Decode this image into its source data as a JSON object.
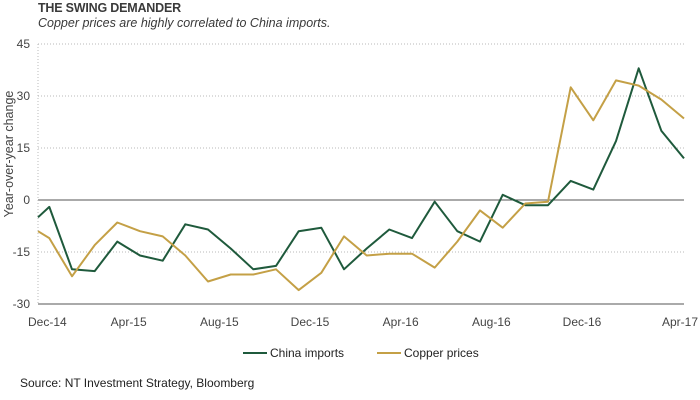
{
  "title": "THE SWING DEMANDER",
  "subtitle": "Copper prices are highly correlated to China imports.",
  "source": "Source: NT Investment Strategy, Bloomberg",
  "chart_data": {
    "type": "line",
    "ylabel": "Year-over-year change",
    "xlabel": "",
    "ylim": [
      -30,
      45
    ],
    "yticks": [
      -30,
      -15,
      0,
      15,
      30,
      45
    ],
    "x": [
      "Dec-14",
      "Jan-15",
      "Feb-15",
      "Mar-15",
      "Apr-15",
      "May-15",
      "Jun-15",
      "Jul-15",
      "Aug-15",
      "Sep-15",
      "Oct-15",
      "Nov-15",
      "Dec-15",
      "Jan-16",
      "Feb-16",
      "Mar-16",
      "Apr-16",
      "May-16",
      "Jun-16",
      "Jul-16",
      "Aug-16",
      "Sep-16",
      "Oct-16",
      "Nov-16",
      "Dec-16",
      "Jan-17",
      "Feb-17",
      "Mar-17",
      "Apr-17"
    ],
    "xtick_labels": [
      {
        "index": 0,
        "label": "Dec-14"
      },
      {
        "index": 4,
        "label": "Apr-15"
      },
      {
        "index": 8,
        "label": "Aug-15"
      },
      {
        "index": 12,
        "label": "Dec-15"
      },
      {
        "index": 16,
        "label": "Apr-16"
      },
      {
        "index": 20,
        "label": "Aug-16"
      },
      {
        "index": 24,
        "label": "Dec-16"
      },
      {
        "index": 28,
        "label": "Apr-17"
      }
    ],
    "series": [
      {
        "name": "China imports",
        "color": "#1f5a3c",
        "points": [
          [
            0,
            -5
          ],
          [
            0.5,
            -2
          ],
          [
            1.5,
            -20
          ],
          [
            2.5,
            -20.5
          ],
          [
            3.5,
            -12
          ],
          [
            4.5,
            -16
          ],
          [
            5.5,
            -17.5
          ],
          [
            6.5,
            -7
          ],
          [
            7.5,
            -8.5
          ],
          [
            8.5,
            -14
          ],
          [
            9.5,
            -20
          ],
          [
            10.5,
            -19
          ],
          [
            11.5,
            -9
          ],
          [
            12.5,
            -8
          ],
          [
            13.5,
            -20
          ],
          [
            14.5,
            -14
          ],
          [
            15.5,
            -8.5
          ],
          [
            16.5,
            -11
          ],
          [
            17.5,
            -0.5
          ],
          [
            18.5,
            -9
          ],
          [
            19.5,
            -12
          ],
          [
            20.5,
            1.5
          ],
          [
            21.5,
            -1.5
          ],
          [
            22.5,
            -1.5
          ],
          [
            23.5,
            5.5
          ],
          [
            24.5,
            3
          ],
          [
            25.5,
            17
          ],
          [
            26.5,
            38
          ],
          [
            27.5,
            20
          ],
          [
            28.5,
            12
          ]
        ]
      },
      {
        "name": "Copper prices",
        "color": "#c4a046",
        "points": [
          [
            0,
            -9
          ],
          [
            0.5,
            -11
          ],
          [
            1.5,
            -22
          ],
          [
            2.5,
            -13
          ],
          [
            3.5,
            -6.5
          ],
          [
            4.5,
            -9
          ],
          [
            5.5,
            -10.5
          ],
          [
            6.5,
            -16
          ],
          [
            7.5,
            -23.5
          ],
          [
            8.5,
            -21.5
          ],
          [
            9.5,
            -21.5
          ],
          [
            10.5,
            -20
          ],
          [
            11.5,
            -26
          ],
          [
            12.5,
            -21
          ],
          [
            13.5,
            -10.5
          ],
          [
            14.5,
            -16
          ],
          [
            15.5,
            -15.5
          ],
          [
            16.5,
            -15.5
          ],
          [
            17.5,
            -19.5
          ],
          [
            18.5,
            -12
          ],
          [
            19.5,
            -3
          ],
          [
            20.5,
            -8
          ],
          [
            21.5,
            -1
          ],
          [
            22.5,
            -0.5
          ],
          [
            23.5,
            32.5
          ],
          [
            24.5,
            23
          ],
          [
            25.5,
            34.5
          ],
          [
            26.5,
            33
          ],
          [
            27.5,
            29
          ],
          [
            28.5,
            23.5
          ]
        ]
      }
    ],
    "grid": "horizontal dotted",
    "legend_position": "bottom-center"
  }
}
